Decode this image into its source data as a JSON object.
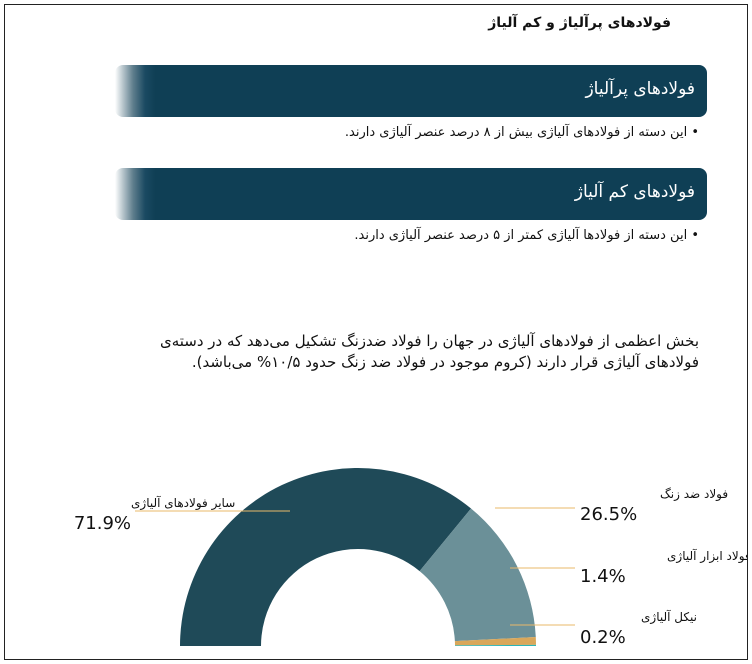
{
  "title": "فولادهای پرآلیاژ و کم آلیاژ",
  "sections": [
    {
      "heading": "فولادهای پرآلیاژ",
      "bullet": "این دسته از فولادهای آلیاژی بیش از ۸ درصد عنصر آلیاژی دارند."
    },
    {
      "heading": "فولادهای کم آلیاژ",
      "bullet": "این دسته از فولادها آلیاژی کمتر از ۵ درصد عنصر آلیاژی دارند."
    }
  ],
  "paragraph": "بخش اعظمی از فولادهای آلیاژی در جهان را فولاد ضدزنگ تشکیل می‌دهد که در دسته‌ی فولادهای آلیاژی قرار دارند (کروم موجود در فولاد ضد زنگ حدود ۱۰/۵% می‌باشد).",
  "chart_data": {
    "type": "pie",
    "categories": [
      "سایر فولادهای آلیاژی",
      "فولاد ضد زنگ",
      "فولاد ابزار آلیاژی",
      "نیکل آلیاژی"
    ],
    "values": [
      71.9,
      26.5,
      1.4,
      0.2
    ],
    "value_labels": [
      "71.9%",
      "26.5%",
      "1.4%",
      "0.2%"
    ],
    "colors": [
      "#1f4a58",
      "#6b9098",
      "#d9a75a",
      "#2bb5b8"
    ]
  }
}
